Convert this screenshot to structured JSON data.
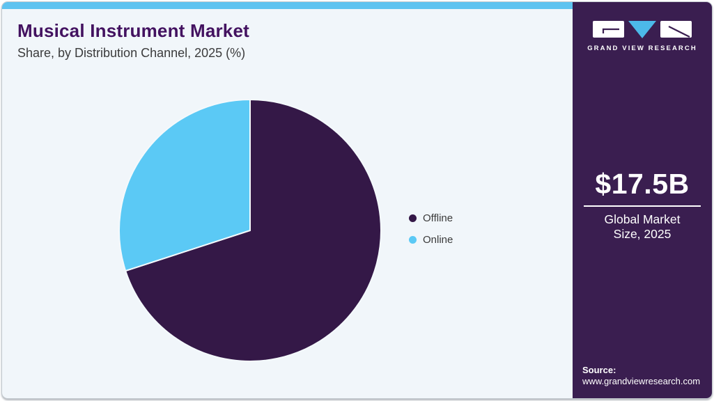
{
  "chart_data": {
    "type": "pie",
    "title": "Musical Instrument Market",
    "subtitle": "Share, by Distribution Channel, 2025 (%)",
    "categories": [
      "Offline",
      "Online"
    ],
    "values": [
      70,
      30
    ],
    "unit": "%",
    "colors": [
      "#341847",
      "#5bc9f5"
    ],
    "legend_position": "right",
    "start_angle_deg": 0,
    "direction": "clockwise",
    "data_labels": false
  },
  "sidebar": {
    "brand": "GRAND VIEW RESEARCH",
    "market_size_value": "$17.5B",
    "market_size_label": "Global Market Size, 2025",
    "source_label": "Source:",
    "source_url": "www.grandviewresearch.com",
    "background_color": "#3a1e50"
  },
  "accent": {
    "topbar_color": "#5fc3f0",
    "title_color": "#431260",
    "logo_triangle_color": "#4cb9e9",
    "panel_background": "#f1f6fa"
  }
}
